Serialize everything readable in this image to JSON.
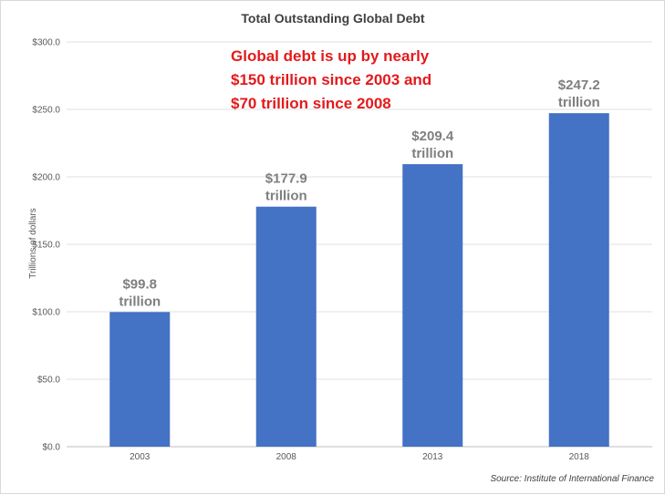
{
  "chart_data": {
    "type": "bar",
    "title": "Total Outstanding Global Debt",
    "ylabel": "Trillions of dollars",
    "xlabel": "",
    "categories": [
      "2003",
      "2008",
      "2013",
      "2018"
    ],
    "values": [
      99.8,
      177.9,
      209.4,
      247.2
    ],
    "data_labels": [
      [
        "$99.8",
        "trillion"
      ],
      [
        "$177.9",
        "trillion"
      ],
      [
        "$209.4",
        "trillion"
      ],
      [
        "$247.2",
        "trillion"
      ]
    ],
    "ylim": [
      0,
      300
    ],
    "yticks": [
      0,
      50,
      100,
      150,
      200,
      250,
      300
    ],
    "ytick_labels": [
      "$0.0",
      "$50.0",
      "$100.0",
      "$150.0",
      "$200.0",
      "$250.0",
      "$300.0"
    ],
    "grid": true,
    "bar_color": "#4472c4",
    "annotation": {
      "lines": [
        "Global debt is up by nearly",
        "$150 trillion since 2003 and",
        "$70 trillion since 2008"
      ],
      "color": "#e31a1c"
    },
    "source": "Source: Institute of International Finance"
  }
}
